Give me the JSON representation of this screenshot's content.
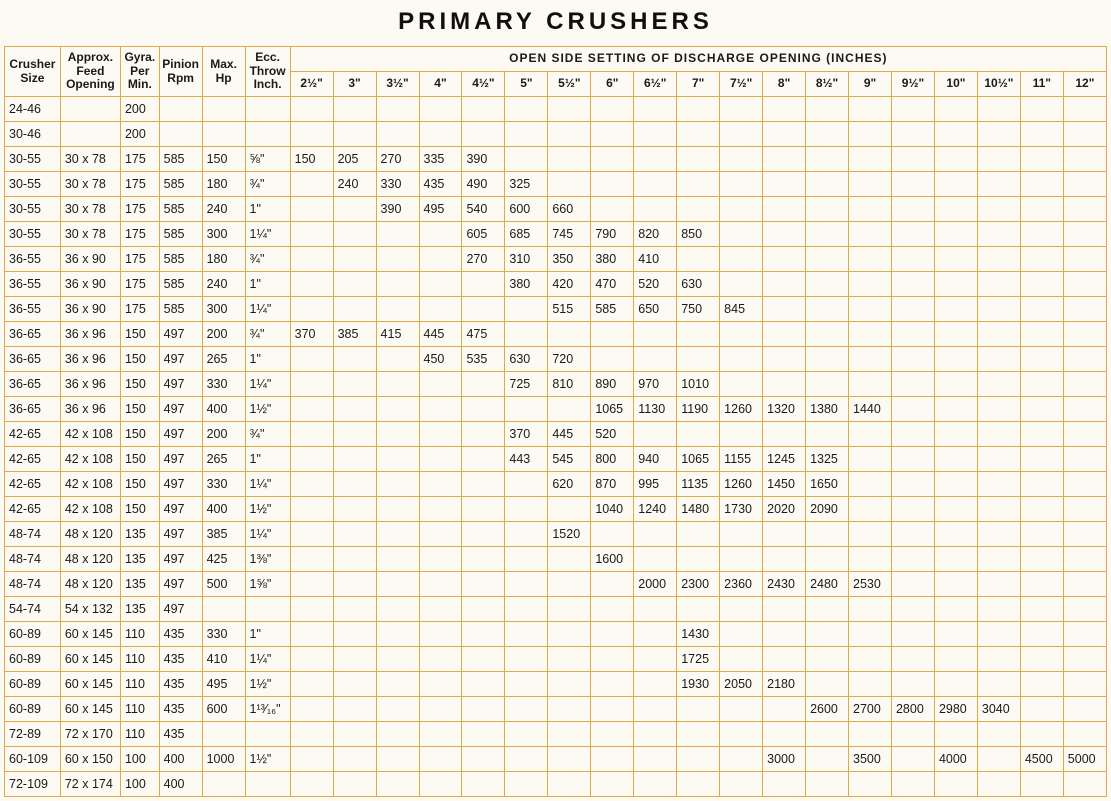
{
  "title": "PRIMARY CRUSHERS",
  "span_header": "OPEN SIDE SETTING OF DISCHARGE OPENING (INCHES)",
  "fixed_headers": [
    "Crusher\nSize",
    "Approx.\nFeed\nOpening",
    "Gyra.\nPer\nMin.",
    "Pinion\nRpm",
    "Max.\nHp",
    "Ecc.\nThrow\nInch."
  ],
  "oss_headers": [
    "2½\"",
    "3\"",
    "3½\"",
    "4\"",
    "4½\"",
    "5\"",
    "5½\"",
    "6\"",
    "6½\"",
    "7\"",
    "7½\"",
    "8\"",
    "8½\"",
    "9\"",
    "9½\"",
    "10\"",
    "10½\"",
    "11\"",
    "12\""
  ],
  "rows": [
    {
      "size": "24-46",
      "feed": "",
      "gyra": "200",
      "pinion": "",
      "hp": "",
      "ecc": "",
      "oss": [
        "",
        "",
        "",
        "",
        "",
        "",
        "",
        "",
        "",
        "",
        "",
        "",
        "",
        "",
        "",
        "",
        "",
        "",
        ""
      ]
    },
    {
      "size": "30-46",
      "feed": "",
      "gyra": "200",
      "pinion": "",
      "hp": "",
      "ecc": "",
      "oss": [
        "",
        "",
        "",
        "",
        "",
        "",
        "",
        "",
        "",
        "",
        "",
        "",
        "",
        "",
        "",
        "",
        "",
        "",
        ""
      ]
    },
    {
      "size": "30-55",
      "feed": "30 x 78",
      "gyra": "175",
      "pinion": "585",
      "hp": "150",
      "ecc": "⅝\"",
      "oss": [
        "150",
        "205",
        "270",
        "335",
        "390",
        "",
        "",
        "",
        "",
        "",
        "",
        "",
        "",
        "",
        "",
        "",
        "",
        "",
        ""
      ]
    },
    {
      "size": "30-55",
      "feed": "30 x 78",
      "gyra": "175",
      "pinion": "585",
      "hp": "180",
      "ecc": "¾\"",
      "oss": [
        "",
        "240",
        "330",
        "435",
        "490",
        "325",
        "",
        "",
        "",
        "",
        "",
        "",
        "",
        "",
        "",
        "",
        "",
        "",
        ""
      ]
    },
    {
      "size": "30-55",
      "feed": "30 x 78",
      "gyra": "175",
      "pinion": "585",
      "hp": "240",
      "ecc": "1\"",
      "oss": [
        "",
        "",
        "390",
        "495",
        "540",
        "600",
        "660",
        "",
        "",
        "",
        "",
        "",
        "",
        "",
        "",
        "",
        "",
        "",
        ""
      ]
    },
    {
      "size": "30-55",
      "feed": "30 x 78",
      "gyra": "175",
      "pinion": "585",
      "hp": "300",
      "ecc": "1¼\"",
      "oss": [
        "",
        "",
        "",
        "",
        "605",
        "685",
        "745",
        "790",
        "820",
        "850",
        "",
        "",
        "",
        "",
        "",
        "",
        "",
        "",
        ""
      ]
    },
    {
      "size": "36-55",
      "feed": "36 x 90",
      "gyra": "175",
      "pinion": "585",
      "hp": "180",
      "ecc": "¾\"",
      "oss": [
        "",
        "",
        "",
        "",
        "270",
        "310",
        "350",
        "380",
        "410",
        "",
        "",
        "",
        "",
        "",
        "",
        "",
        "",
        "",
        ""
      ]
    },
    {
      "size": "36-55",
      "feed": "36 x 90",
      "gyra": "175",
      "pinion": "585",
      "hp": "240",
      "ecc": "1\"",
      "oss": [
        "",
        "",
        "",
        "",
        "",
        "380",
        "420",
        "470",
        "520",
        "630",
        "",
        "",
        "",
        "",
        "",
        "",
        "",
        "",
        ""
      ]
    },
    {
      "size": "36-55",
      "feed": "36 x 90",
      "gyra": "175",
      "pinion": "585",
      "hp": "300",
      "ecc": "1¼\"",
      "oss": [
        "",
        "",
        "",
        "",
        "",
        "",
        "515",
        "585",
        "650",
        "750",
        "845",
        "",
        "",
        "",
        "",
        "",
        "",
        "",
        ""
      ]
    },
    {
      "size": "36-65",
      "feed": "36 x 96",
      "gyra": "150",
      "pinion": "497",
      "hp": "200",
      "ecc": "¾\"",
      "oss": [
        "370",
        "385",
        "415",
        "445",
        "475",
        "",
        "",
        "",
        "",
        "",
        "",
        "",
        "",
        "",
        "",
        "",
        "",
        "",
        ""
      ]
    },
    {
      "size": "36-65",
      "feed": "36 x 96",
      "gyra": "150",
      "pinion": "497",
      "hp": "265",
      "ecc": "1\"",
      "oss": [
        "",
        "",
        "",
        "450",
        "535",
        "630",
        "720",
        "",
        "",
        "",
        "",
        "",
        "",
        "",
        "",
        "",
        "",
        "",
        ""
      ]
    },
    {
      "size": "36-65",
      "feed": "36 x 96",
      "gyra": "150",
      "pinion": "497",
      "hp": "330",
      "ecc": "1¼\"",
      "oss": [
        "",
        "",
        "",
        "",
        "",
        "725",
        "810",
        "890",
        "970",
        "1010",
        "",
        "",
        "",
        "",
        "",
        "",
        "",
        "",
        ""
      ]
    },
    {
      "size": "36-65",
      "feed": "36 x 96",
      "gyra": "150",
      "pinion": "497",
      "hp": "400",
      "ecc": "1½\"",
      "oss": [
        "",
        "",
        "",
        "",
        "",
        "",
        "",
        "1065",
        "1130",
        "1190",
        "1260",
        "1320",
        "1380",
        "1440",
        "",
        "",
        "",
        "",
        ""
      ]
    },
    {
      "size": "42-65",
      "feed": "42 x 108",
      "gyra": "150",
      "pinion": "497",
      "hp": "200",
      "ecc": "¾\"",
      "oss": [
        "",
        "",
        "",
        "",
        "",
        "370",
        "445",
        "520",
        "",
        "",
        "",
        "",
        "",
        "",
        "",
        "",
        "",
        "",
        ""
      ]
    },
    {
      "size": "42-65",
      "feed": "42 x 108",
      "gyra": "150",
      "pinion": "497",
      "hp": "265",
      "ecc": "1\"",
      "oss": [
        "",
        "",
        "",
        "",
        "",
        "443",
        "545",
        "800",
        "940",
        "1065",
        "1155",
        "1245",
        "1325",
        "",
        "",
        "",
        "",
        "",
        ""
      ]
    },
    {
      "size": "42-65",
      "feed": "42 x 108",
      "gyra": "150",
      "pinion": "497",
      "hp": "330",
      "ecc": "1¼\"",
      "oss": [
        "",
        "",
        "",
        "",
        "",
        "",
        "620",
        "870",
        "995",
        "1135",
        "1260",
        "1450",
        "1650",
        "",
        "",
        "",
        "",
        "",
        ""
      ]
    },
    {
      "size": "42-65",
      "feed": "42 x 108",
      "gyra": "150",
      "pinion": "497",
      "hp": "400",
      "ecc": "1½\"",
      "oss": [
        "",
        "",
        "",
        "",
        "",
        "",
        "",
        "1040",
        "1240",
        "1480",
        "1730",
        "2020",
        "2090",
        "",
        "",
        "",
        "",
        "",
        ""
      ]
    },
    {
      "size": "48-74",
      "feed": "48 x 120",
      "gyra": "135",
      "pinion": "497",
      "hp": "385",
      "ecc": "1¼\"",
      "oss": [
        "",
        "",
        "",
        "",
        "",
        "",
        "1520",
        "",
        "",
        "",
        "",
        "",
        "",
        "",
        "",
        "",
        "",
        "",
        ""
      ]
    },
    {
      "size": "48-74",
      "feed": "48 x 120",
      "gyra": "135",
      "pinion": "497",
      "hp": "425",
      "ecc": "1⅜\"",
      "oss": [
        "",
        "",
        "",
        "",
        "",
        "",
        "",
        "1600",
        "",
        "",
        "",
        "",
        "",
        "",
        "",
        "",
        "",
        "",
        ""
      ]
    },
    {
      "size": "48-74",
      "feed": "48 x 120",
      "gyra": "135",
      "pinion": "497",
      "hp": "500",
      "ecc": "1⅝\"",
      "oss": [
        "",
        "",
        "",
        "",
        "",
        "",
        "",
        "",
        "2000",
        "2300",
        "2360",
        "2430",
        "2480",
        "2530",
        "",
        "",
        "",
        "",
        ""
      ]
    },
    {
      "size": "54-74",
      "feed": "54 x 132",
      "gyra": "135",
      "pinion": "497",
      "hp": "",
      "ecc": "",
      "oss": [
        "",
        "",
        "",
        "",
        "",
        "",
        "",
        "",
        "",
        "",
        "",
        "",
        "",
        "",
        "",
        "",
        "",
        "",
        ""
      ]
    },
    {
      "size": "60-89",
      "feed": "60 x 145",
      "gyra": "110",
      "pinion": "435",
      "hp": "330",
      "ecc": "1\"",
      "oss": [
        "",
        "",
        "",
        "",
        "",
        "",
        "",
        "",
        "",
        "1430",
        "",
        "",
        "",
        "",
        "",
        "",
        "",
        "",
        ""
      ]
    },
    {
      "size": "60-89",
      "feed": "60 x 145",
      "gyra": "110",
      "pinion": "435",
      "hp": "410",
      "ecc": "1¼\"",
      "oss": [
        "",
        "",
        "",
        "",
        "",
        "",
        "",
        "",
        "",
        "1725",
        "",
        "",
        "",
        "",
        "",
        "",
        "",
        "",
        ""
      ]
    },
    {
      "size": "60-89",
      "feed": "60 x 145",
      "gyra": "110",
      "pinion": "435",
      "hp": "495",
      "ecc": "1½\"",
      "oss": [
        "",
        "",
        "",
        "",
        "",
        "",
        "",
        "",
        "",
        "1930",
        "2050",
        "2180",
        "",
        "",
        "",
        "",
        "",
        "",
        ""
      ]
    },
    {
      "size": "60-89",
      "feed": "60 x 145",
      "gyra": "110",
      "pinion": "435",
      "hp": "600",
      "ecc": "1¹³⁄₁₆\"",
      "oss": [
        "",
        "",
        "",
        "",
        "",
        "",
        "",
        "",
        "",
        "",
        "",
        "",
        "2600",
        "2700",
        "2800",
        "2980",
        "3040",
        "",
        ""
      ]
    },
    {
      "size": "72-89",
      "feed": "72 x 170",
      "gyra": "110",
      "pinion": "435",
      "hp": "",
      "ecc": "",
      "oss": [
        "",
        "",
        "",
        "",
        "",
        "",
        "",
        "",
        "",
        "",
        "",
        "",
        "",
        "",
        "",
        "",
        "",
        "",
        ""
      ]
    },
    {
      "size": "60-109",
      "feed": "60 x 150",
      "gyra": "100",
      "pinion": "400",
      "hp": "1000",
      "ecc": "1½\"",
      "oss": [
        "",
        "",
        "",
        "",
        "",
        "",
        "",
        "",
        "",
        "",
        "",
        "3000",
        "",
        "3500",
        "",
        "4000",
        "",
        "4500",
        "5000"
      ]
    },
    {
      "size": "72-109",
      "feed": "72 x 174",
      "gyra": "100",
      "pinion": "400",
      "hp": "",
      "ecc": "",
      "oss": [
        "",
        "",
        "",
        "",
        "",
        "",
        "",
        "",
        "",
        "",
        "",
        "",
        "",
        "",
        "",
        "",
        "",
        "",
        ""
      ]
    }
  ]
}
